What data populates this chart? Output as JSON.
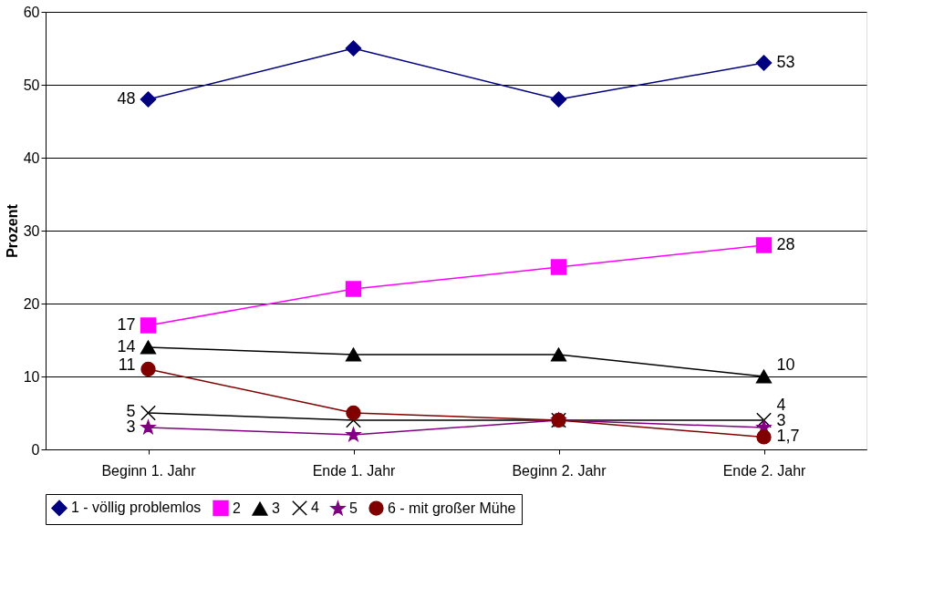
{
  "chart_data": {
    "type": "line",
    "ylabel": "Prozent",
    "categories": [
      "Beginn 1. Jahr",
      "Ende 1. Jahr",
      "Beginn 2. Jahr",
      "Ende 2. Jahr"
    ],
    "ylim": [
      0,
      60
    ],
    "yticks": [
      0,
      10,
      20,
      30,
      40,
      50,
      60
    ],
    "grid": "y",
    "legend": "bottom",
    "series": [
      {
        "name": "1 - völlig problemlos",
        "color": "#000080",
        "marker": "diamond",
        "values": [
          48,
          55,
          48,
          53
        ],
        "value_labels": [
          "48",
          null,
          null,
          "53"
        ]
      },
      {
        "name": "2",
        "color": "#ff00ff",
        "marker": "square",
        "values": [
          17,
          22,
          25,
          28
        ],
        "value_labels": [
          "17",
          null,
          null,
          "28"
        ]
      },
      {
        "name": "3",
        "color": "#000000",
        "marker": "triangle",
        "values": [
          14,
          13,
          13,
          10
        ],
        "value_labels": [
          "14",
          null,
          null,
          "10"
        ]
      },
      {
        "name": "4",
        "color": "#000000",
        "marker": "cross",
        "values": [
          5,
          4,
          4,
          4
        ],
        "value_labels": [
          "5",
          null,
          null,
          "4"
        ]
      },
      {
        "name": "5",
        "color": "#800080",
        "marker": "star",
        "values": [
          3,
          2,
          4,
          3
        ],
        "value_labels": [
          "3",
          null,
          null,
          "3"
        ]
      },
      {
        "name": "6 - mit großer Mühe",
        "color": "#800000",
        "marker": "circle",
        "values": [
          11,
          5,
          4,
          1.7
        ],
        "value_labels": [
          "11",
          null,
          null,
          "1,7"
        ]
      }
    ]
  }
}
